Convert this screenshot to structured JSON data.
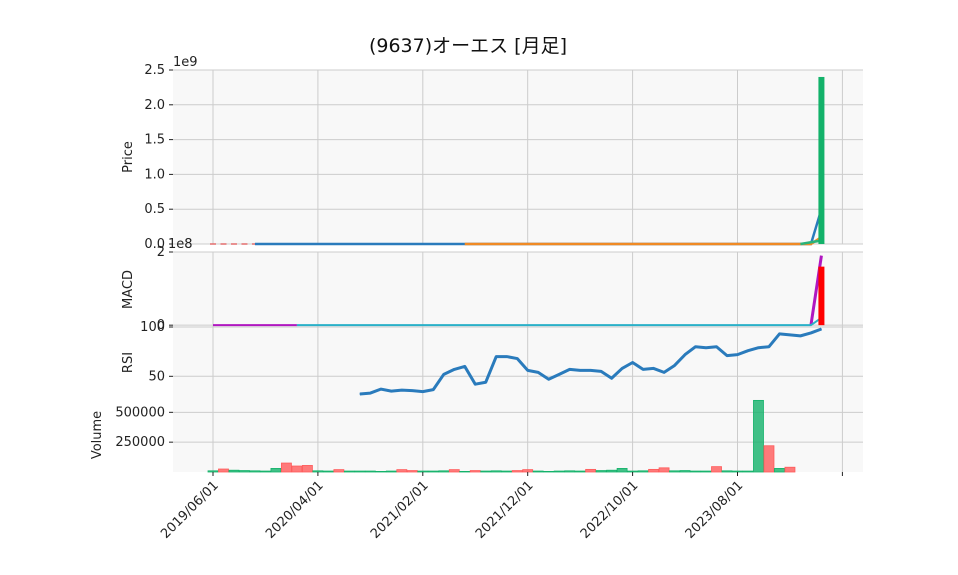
{
  "title": "(9637)オーエス [月足]",
  "chart_data": [
    {
      "panel": "price",
      "type": "candlestick",
      "ylabel": "Price",
      "offset_label": "1e9",
      "yticks": [
        "0.0",
        "0.5",
        "1.0",
        "1.5",
        "2.0",
        "2.5"
      ],
      "ytick_values": [
        0,
        0.5,
        1.0,
        1.5,
        2.0,
        2.5
      ],
      "ylim": [
        0,
        2.5
      ],
      "grid": true,
      "series": [
        {
          "kind": "candle",
          "x": [
            0,
            1,
            2,
            3,
            4
          ],
          "y": [
            0.0,
            0.0,
            0.0,
            0.0,
            0.0
          ],
          "color": "#e36d6d"
        },
        {
          "kind": "moving_average",
          "color": "#2a7bbc",
          "start_index": 4,
          "end_index": 57,
          "values": [
            0.0,
            0.0,
            0.5
          ],
          "end_jump_index": 58
        },
        {
          "kind": "moving_average",
          "color": "#f08a24",
          "start_index": 24,
          "end_index": 57,
          "values": [
            0.0,
            0.0,
            0.1
          ],
          "end_jump_index": 58
        },
        {
          "kind": "moving_average",
          "color": "#2ab37a",
          "start_index": 56,
          "end_index": 58,
          "values": [
            0.0,
            0.05,
            0.08
          ]
        },
        {
          "kind": "last_candle",
          "x": 58,
          "open": 0.0,
          "close": 2.4,
          "color": "#13b26a"
        }
      ]
    },
    {
      "panel": "macd",
      "type": "line",
      "ylabel": "MACD",
      "offset_label": "1e8",
      "yticks": [
        "0",
        "2"
      ],
      "ytick_values": [
        0,
        2
      ],
      "ylim": [
        -0.05,
        2.0
      ],
      "series": [
        {
          "name": "macd",
          "color": "#b017c0",
          "start_index": 0,
          "end_index": 8,
          "value": 0.0,
          "end_jump_index": 57,
          "end_value": 0.0,
          "final_value": 1.9
        },
        {
          "name": "signal",
          "color": "#2ab0c8",
          "start_index": 8,
          "end_index": 57,
          "value": 0.0,
          "final_value": 0.2
        },
        {
          "name": "histogram",
          "color": "#ff0000",
          "x": 58,
          "value": 1.6
        }
      ]
    },
    {
      "panel": "rsi",
      "type": "line",
      "ylabel": "RSI",
      "yticks": [
        "50",
        "100"
      ],
      "ytick_values": [
        50,
        100
      ],
      "ylim": [
        28,
        100
      ],
      "series": [
        {
          "name": "RSI",
          "color": "#2a7bbc",
          "x": [
            14,
            15,
            16,
            17,
            18,
            19,
            20,
            21,
            22,
            23,
            24,
            25,
            26,
            27,
            28,
            29,
            30,
            31,
            32,
            33,
            34,
            35,
            36,
            37,
            38,
            39,
            40,
            41,
            42,
            43,
            44,
            45,
            46,
            47,
            48,
            49,
            50,
            51,
            52,
            53,
            54,
            55,
            56,
            57,
            58
          ],
          "values": [
            32,
            33,
            37,
            35,
            36,
            35.5,
            34.5,
            36.5,
            52,
            57,
            60,
            42,
            44,
            70,
            70,
            68,
            56,
            54,
            47,
            52,
            57,
            56,
            56,
            55,
            48,
            58,
            64,
            57,
            58,
            54,
            61,
            72,
            80,
            79,
            80,
            71,
            72,
            76,
            79,
            80,
            93,
            92,
            91,
            94,
            98
          ]
        }
      ]
    },
    {
      "panel": "volume",
      "type": "bar",
      "ylabel": "Volume",
      "yticks": [
        "250000",
        "500000"
      ],
      "ytick_values": [
        250000,
        500000
      ],
      "ylim": [
        0,
        620000
      ],
      "series": [
        {
          "name": "volume",
          "x": [
            0,
            1,
            2,
            3,
            4,
            5,
            6,
            7,
            8,
            9,
            10,
            11,
            12,
            13,
            14,
            15,
            16,
            17,
            18,
            19,
            20,
            21,
            22,
            23,
            24,
            25,
            26,
            27,
            28,
            29,
            30,
            31,
            32,
            33,
            34,
            35,
            36,
            37,
            38,
            39,
            40,
            41,
            42,
            43,
            44,
            45,
            46,
            47,
            48,
            49,
            50,
            51,
            52,
            53,
            54,
            55,
            56,
            57,
            58
          ],
          "values": [
            10000,
            25000,
            15000,
            12000,
            10000,
            8000,
            30000,
            75000,
            50000,
            55000,
            10000,
            8000,
            20000,
            8000,
            8000,
            8000,
            5000,
            8000,
            20000,
            12000,
            8000,
            8000,
            10000,
            20000,
            5000,
            12000,
            8000,
            10000,
            8000,
            12000,
            20000,
            8000,
            5000,
            8000,
            10000,
            8000,
            22000,
            12000,
            15000,
            30000,
            8000,
            10000,
            22000,
            35000,
            10000,
            12000,
            8000,
            8000,
            45000,
            10000,
            8000,
            8000,
            600000,
            220000,
            30000,
            40000,
            0,
            0,
            0
          ],
          "up": [
            true,
            false,
            true,
            true,
            true,
            true,
            true,
            false,
            false,
            false,
            true,
            true,
            false,
            true,
            true,
            true,
            true,
            true,
            false,
            false,
            true,
            true,
            true,
            false,
            true,
            false,
            true,
            true,
            true,
            false,
            false,
            true,
            true,
            true,
            true,
            true,
            false,
            true,
            true,
            true,
            true,
            true,
            false,
            false,
            true,
            true,
            true,
            true,
            false,
            true,
            true,
            true,
            true,
            false,
            true,
            false,
            true,
            true,
            true
          ],
          "up_color": "#13b26a",
          "down_color": "#ff5a5a"
        }
      ]
    }
  ],
  "x_axis": {
    "tick_labels": [
      "2019/06/01",
      "2020/04/01",
      "2021/02/01",
      "2021/12/01",
      "2022/10/01",
      "2023/08/01",
      ""
    ],
    "tick_index": [
      0,
      10,
      20,
      30,
      40,
      50,
      60
    ]
  }
}
